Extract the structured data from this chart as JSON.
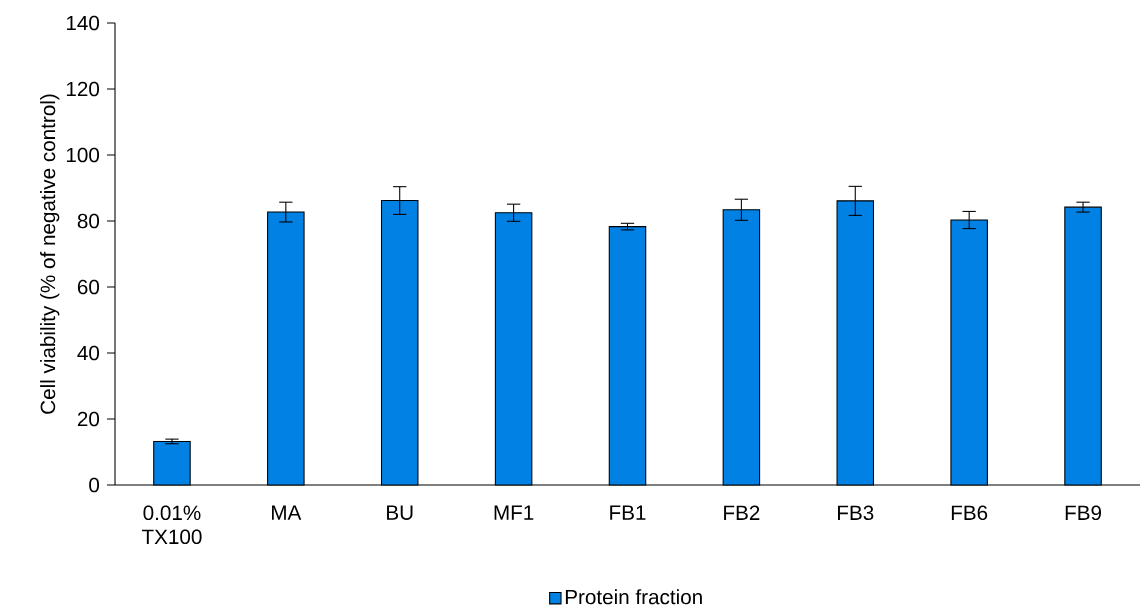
{
  "chart_data": {
    "type": "bar",
    "ylabel": "Cell viability (% of negative control)",
    "categories": [
      "0.01% TX100",
      "MA",
      "BU",
      "MF1",
      "FB1",
      "FB2",
      "FB3",
      "FB6",
      "FB9"
    ],
    "series": [
      {
        "name": "Protein fraction",
        "color": "#0081e3",
        "values": [
          13.2,
          82.7,
          86.2,
          82.5,
          78.3,
          83.4,
          86.1,
          80.3,
          84.2
        ],
        "errors": [
          0.7,
          3.0,
          4.2,
          2.6,
          1.0,
          3.2,
          4.4,
          2.6,
          1.5
        ]
      }
    ],
    "ylim": [
      0,
      140
    ],
    "yticks": [
      0,
      20,
      40,
      60,
      80,
      100,
      120,
      140
    ],
    "grid": false,
    "legend": "bottom"
  }
}
